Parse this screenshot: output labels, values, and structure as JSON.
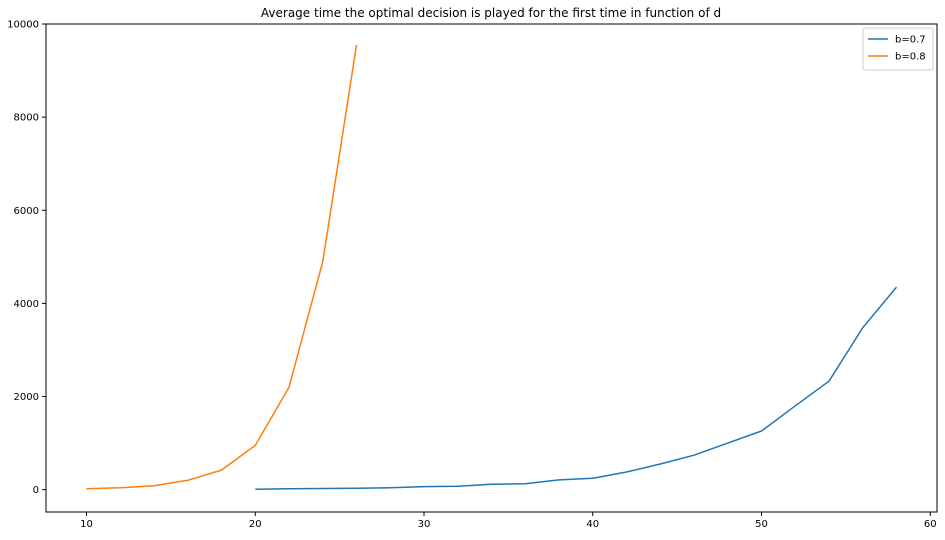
{
  "chart_data": {
    "type": "line",
    "title": "Average time the optimal decision is played for the first time in function of d",
    "xlabel": "",
    "ylabel": "",
    "xlim": [
      7.6,
      60.4
    ],
    "ylim": [
      -480,
      10000
    ],
    "xticks": [
      10,
      20,
      30,
      40,
      50,
      60
    ],
    "yticks": [
      0,
      2000,
      4000,
      6000,
      8000,
      10000
    ],
    "grid": false,
    "legend_position": "top-right",
    "series": [
      {
        "name": "b=0.7",
        "color": "#1f77b4",
        "x": [
          20,
          22,
          24,
          26,
          28,
          30,
          32,
          34,
          36,
          38,
          40,
          42,
          44,
          46,
          48,
          50,
          52,
          54,
          56,
          58
        ],
        "y": [
          10,
          20,
          25,
          30,
          40,
          65,
          75,
          115,
          125,
          210,
          245,
          380,
          550,
          740,
          1000,
          1260,
          1800,
          2330,
          3480,
          4350
        ]
      },
      {
        "name": "b=0.8",
        "color": "#ff7f0e",
        "x": [
          10,
          12,
          14,
          16,
          18,
          20,
          22,
          24,
          26
        ],
        "y": [
          20,
          40,
          85,
          200,
          420,
          950,
          2200,
          4900,
          9550
        ]
      }
    ]
  }
}
